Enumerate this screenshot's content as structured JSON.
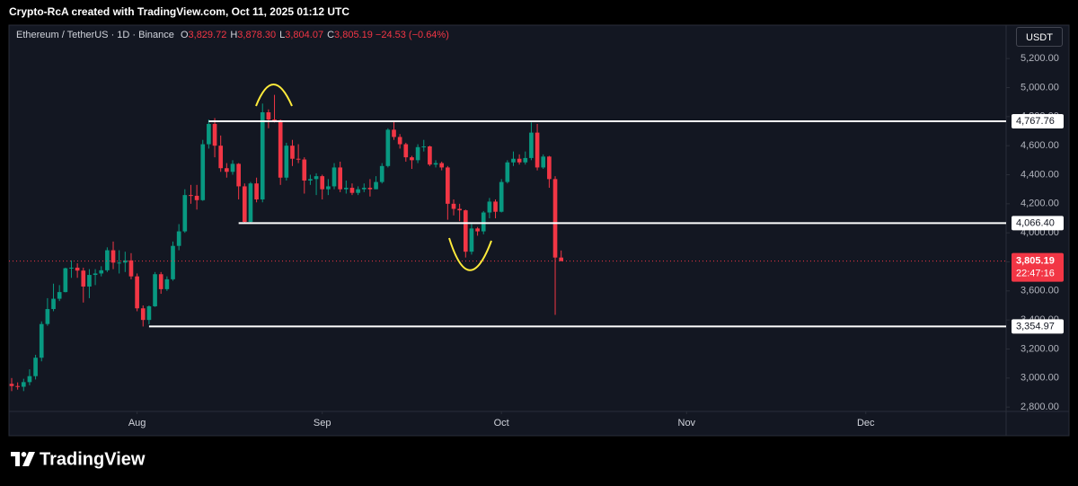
{
  "chart_data": {
    "type": "candlestick",
    "attribution": "Crypto-RcA created with TradingView.com, Oct 11, 2025 01:12 UTC",
    "symbol": "Ethereum / TetherUS · 1D · Binance",
    "ohlc_legend": [
      {
        "key": "O",
        "value": "3,829.72"
      },
      {
        "key": "H",
        "value": "3,878.30"
      },
      {
        "key": "L",
        "value": "3,804.07"
      },
      {
        "key": "C",
        "value": "3,805.19"
      }
    ],
    "change": "−24.53 (−0.64%)",
    "currency": "USDT",
    "up_color": "#089981",
    "down_color": "#f23645",
    "open": [
      2960,
      2945,
      2940,
      2972,
      3013,
      3140,
      3372,
      3475,
      3546,
      3592,
      3756,
      3760,
      3740,
      3630,
      3710,
      3720,
      3742,
      3880,
      3795,
      3795,
      3810,
      3700,
      3480,
      3400,
      3494,
      3715,
      3612,
      3680,
      3910,
      4010,
      4260,
      4255,
      4225,
      4610,
      4750,
      4600,
      4445,
      4420,
      4475,
      4320,
      4075,
      4340,
      4230,
      4830,
      4780,
      4775,
      4380,
      4600,
      4510,
      4505,
      4360,
      4370,
      4390,
      4300,
      4320,
      4450,
      4300,
      4310,
      4275,
      4300,
      4310,
      4300,
      4350,
      4460,
      4710,
      4660,
      4610,
      4520,
      4500,
      4590,
      4595,
      4470,
      4480,
      4450,
      4200,
      4165,
      4155,
      3870,
      4030,
      4010,
      4140,
      4215,
      4145,
      4350,
      4485,
      4510,
      4485,
      4515,
      4690,
      4450,
      4525,
      4370,
      3829.72
    ],
    "high": [
      3000,
      2970,
      2995,
      3060,
      3160,
      3390,
      3550,
      3650,
      3640,
      3760,
      3810,
      3790,
      3760,
      3750,
      3750,
      3770,
      3900,
      3940,
      3880,
      3870,
      3860,
      3720,
      3500,
      3500,
      3730,
      3730,
      3700,
      3940,
      4060,
      4300,
      4330,
      4330,
      4640,
      4780,
      4790,
      4670,
      4480,
      4500,
      4480,
      4340,
      4350,
      4380,
      4890,
      4850,
      4950,
      4780,
      4620,
      4640,
      4610,
      4520,
      4400,
      4410,
      4400,
      4370,
      4480,
      4490,
      4360,
      4340,
      4320,
      4340,
      4370,
      4390,
      4480,
      4720,
      4770,
      4680,
      4620,
      4530,
      4610,
      4640,
      4600,
      4500,
      4490,
      4460,
      4230,
      4200,
      4160,
      4060,
      4040,
      4150,
      4240,
      4230,
      4370,
      4500,
      4560,
      4540,
      4560,
      4760,
      4750,
      4540,
      4530,
      4390,
      3878.3
    ],
    "low": [
      2910,
      2920,
      2910,
      2950,
      2990,
      3115,
      3360,
      3460,
      3530,
      3590,
      3690,
      3690,
      3520,
      3550,
      3640,
      3700,
      3730,
      3750,
      3720,
      3730,
      3680,
      3460,
      3355,
      3370,
      3490,
      3580,
      3600,
      3670,
      3880,
      4000,
      4200,
      4160,
      4220,
      4580,
      4520,
      4420,
      4380,
      4400,
      4230,
      4070,
      4065,
      4210,
      4210,
      4720,
      4760,
      4330,
      4360,
      4460,
      4480,
      4270,
      4330,
      4260,
      4230,
      4260,
      4300,
      4280,
      4270,
      4260,
      4260,
      4280,
      4250,
      4300,
      4340,
      4450,
      4640,
      4580,
      4490,
      4440,
      4480,
      4560,
      4460,
      4450,
      4430,
      4090,
      4120,
      4080,
      3830,
      3850,
      3980,
      3990,
      4100,
      4100,
      4140,
      4340,
      4460,
      4470,
      4470,
      4500,
      4430,
      4440,
      4310,
      3435,
      3804.07
    ],
    "close": [
      2945,
      2940,
      2972,
      3013,
      3140,
      3372,
      3475,
      3546,
      3592,
      3756,
      3760,
      3740,
      3630,
      3710,
      3720,
      3742,
      3880,
      3795,
      3795,
      3810,
      3700,
      3480,
      3400,
      3494,
      3715,
      3612,
      3680,
      3910,
      4010,
      4260,
      4255,
      4225,
      4610,
      4750,
      4600,
      4445,
      4420,
      4475,
      4320,
      4075,
      4340,
      4230,
      4830,
      4780,
      4775,
      4380,
      4600,
      4510,
      4505,
      4360,
      4370,
      4390,
      4300,
      4320,
      4450,
      4300,
      4310,
      4275,
      4300,
      4310,
      4300,
      4350,
      4460,
      4710,
      4660,
      4610,
      4520,
      4500,
      4590,
      4595,
      4470,
      4480,
      4450,
      4200,
      4165,
      4155,
      3870,
      4030,
      4010,
      4140,
      4215,
      4145,
      4350,
      4485,
      4510,
      4485,
      4515,
      4690,
      4450,
      4525,
      4370,
      3829.72,
      3805.19
    ],
    "xlim": [
      -0.45,
      166.5
    ],
    "xticks": [
      {
        "value": 21,
        "label": "Aug"
      },
      {
        "value": 52,
        "label": "Sep"
      },
      {
        "value": 82,
        "label": "Oct"
      },
      {
        "value": 113,
        "label": "Nov"
      },
      {
        "value": 143,
        "label": "Dec"
      }
    ],
    "ylim": [
      2770,
      5430
    ],
    "yticks": [
      {
        "value": 2800,
        "label": "2,800.00"
      },
      {
        "value": 3000,
        "label": "3,000.00"
      },
      {
        "value": 3200,
        "label": "3,200.00"
      },
      {
        "value": 3400,
        "label": "3,400.00"
      },
      {
        "value": 3600,
        "label": "3,600.00"
      },
      {
        "value": 3800,
        "label": "3,800.00"
      },
      {
        "value": 4000,
        "label": "4,000.00"
      },
      {
        "value": 4200,
        "label": "4,200.00"
      },
      {
        "value": 4400,
        "label": "4,400.00"
      },
      {
        "value": 4600,
        "label": "4,600.00"
      },
      {
        "value": 4800,
        "label": "4,800.00"
      },
      {
        "value": 5000,
        "label": "5,000.00"
      },
      {
        "value": 5200,
        "label": "5,200.00"
      }
    ],
    "grid": false,
    "levels": [
      {
        "value": 4767.76,
        "label": "4,767.76",
        "from": 33
      },
      {
        "value": 4066.4,
        "label": "4,066.40",
        "from": 38
      },
      {
        "value": 3354.97,
        "label": "3,354.97",
        "from": 23
      }
    ],
    "last_price": {
      "value": 3805.19,
      "label": "3,805.19",
      "countdown": "22:47:16"
    },
    "brand": "TradingView"
  }
}
